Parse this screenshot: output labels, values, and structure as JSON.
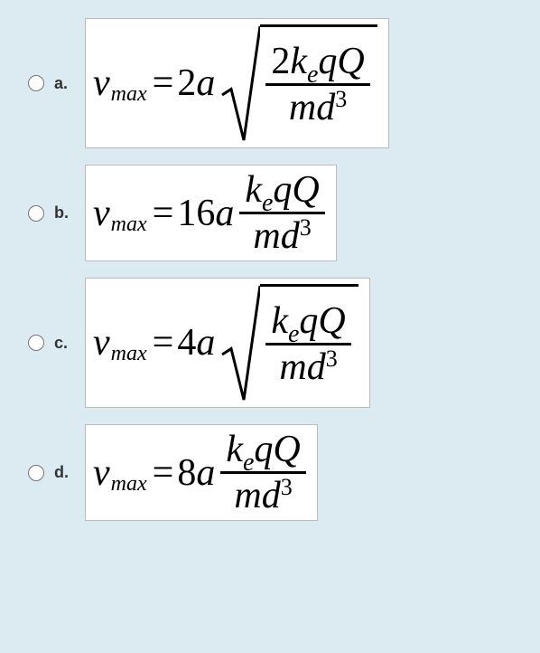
{
  "options": [
    {
      "letter": "a.",
      "lhs_var": "v",
      "lhs_sub": "max",
      "coeff": "2a",
      "has_sqrt": true,
      "num_coeff": "2",
      "num_k": "k",
      "num_ksub": "e",
      "num_rest": "qQ",
      "den_m": "m",
      "den_d": "d",
      "den_exp": "3"
    },
    {
      "letter": "b.",
      "lhs_var": "v",
      "lhs_sub": "max",
      "coeff": "16a",
      "has_sqrt": false,
      "num_coeff": "",
      "num_k": "k",
      "num_ksub": "e",
      "num_rest": "qQ",
      "den_m": "m",
      "den_d": "d",
      "den_exp": "3"
    },
    {
      "letter": "c.",
      "lhs_var": "v",
      "lhs_sub": "max",
      "coeff": "4a",
      "has_sqrt": true,
      "num_coeff": "",
      "num_k": "k",
      "num_ksub": "e",
      "num_rest": "qQ",
      "den_m": "m",
      "den_d": "d",
      "den_exp": "3"
    },
    {
      "letter": "d.",
      "lhs_var": "v",
      "lhs_sub": "max",
      "coeff": "8a",
      "has_sqrt": false,
      "num_coeff": "",
      "num_k": "k",
      "num_ksub": "e",
      "num_rest": "qQ",
      "den_m": "m",
      "den_d": "d",
      "den_exp": "3"
    }
  ],
  "style": {
    "bg": "#dcebf1",
    "box_bg": "#ffffff",
    "box_border": "#bcbcbc",
    "text": "#000000"
  }
}
